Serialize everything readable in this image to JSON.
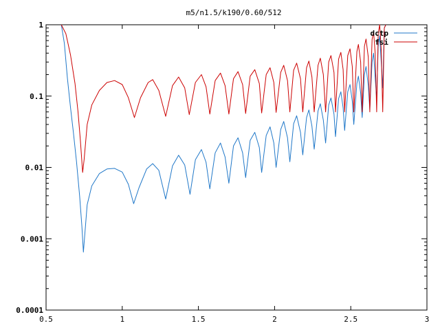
{
  "chart_data": {
    "type": "line",
    "title": "m5/n1.5/k190/0.60/512",
    "xlabel": "",
    "ylabel": "",
    "xlim": [
      0.5,
      3
    ],
    "ylim": [
      0.0001,
      1
    ],
    "yscale": "log",
    "grid": false,
    "legend_position": "top-right",
    "x_ticks": [
      0.5,
      1,
      1.5,
      2,
      2.5,
      3
    ],
    "x_tick_labels": [
      "0.5",
      "1",
      "1.5",
      "2",
      "2.5",
      "3"
    ],
    "y_ticks": [
      0.0001,
      0.001,
      0.01,
      0.1,
      1
    ],
    "y_tick_labels": [
      "0.0001",
      "0.001",
      "0.01",
      "0.1",
      "1"
    ],
    "series": [
      {
        "name": "dctp",
        "color": "#1f77c8",
        "points": [
          [
            0.6,
            1.0
          ],
          [
            0.62,
            0.55
          ],
          [
            0.64,
            0.18
          ],
          [
            0.66,
            0.07
          ],
          [
            0.68,
            0.03
          ],
          [
            0.7,
            0.012
          ],
          [
            0.72,
            0.004
          ],
          [
            0.735,
            0.0015
          ],
          [
            0.745,
            0.00065
          ],
          [
            0.755,
            0.0012
          ],
          [
            0.77,
            0.003
          ],
          [
            0.8,
            0.0055
          ],
          [
            0.85,
            0.0082
          ],
          [
            0.9,
            0.0095
          ],
          [
            0.95,
            0.0097
          ],
          [
            1.0,
            0.0086
          ],
          [
            1.04,
            0.0058
          ],
          [
            1.075,
            0.0031
          ],
          [
            1.11,
            0.0052
          ],
          [
            1.16,
            0.0095
          ],
          [
            1.2,
            0.0113
          ],
          [
            1.24,
            0.0091
          ],
          [
            1.285,
            0.0036
          ],
          [
            1.33,
            0.0105
          ],
          [
            1.37,
            0.0148
          ],
          [
            1.41,
            0.0108
          ],
          [
            1.445,
            0.0042
          ],
          [
            1.48,
            0.0128
          ],
          [
            1.52,
            0.0178
          ],
          [
            1.55,
            0.0118
          ],
          [
            1.575,
            0.005
          ],
          [
            1.61,
            0.016
          ],
          [
            1.645,
            0.022
          ],
          [
            1.675,
            0.014
          ],
          [
            1.7,
            0.006
          ],
          [
            1.73,
            0.02
          ],
          [
            1.76,
            0.026
          ],
          [
            1.79,
            0.016
          ],
          [
            1.81,
            0.0072
          ],
          [
            1.84,
            0.024
          ],
          [
            1.87,
            0.031
          ],
          [
            1.9,
            0.019
          ],
          [
            1.915,
            0.0085
          ],
          [
            1.945,
            0.028
          ],
          [
            1.97,
            0.037
          ],
          [
            1.995,
            0.022
          ],
          [
            2.01,
            0.01
          ],
          [
            2.04,
            0.034
          ],
          [
            2.06,
            0.044
          ],
          [
            2.085,
            0.026
          ],
          [
            2.1,
            0.012
          ],
          [
            2.125,
            0.041
          ],
          [
            2.145,
            0.053
          ],
          [
            2.17,
            0.031
          ],
          [
            2.185,
            0.015
          ],
          [
            2.21,
            0.05
          ],
          [
            2.225,
            0.064
          ],
          [
            2.245,
            0.038
          ],
          [
            2.26,
            0.018
          ],
          [
            2.285,
            0.062
          ],
          [
            2.3,
            0.078
          ],
          [
            2.32,
            0.046
          ],
          [
            2.335,
            0.022
          ],
          [
            2.355,
            0.075
          ],
          [
            2.37,
            0.094
          ],
          [
            2.39,
            0.056
          ],
          [
            2.4,
            0.027
          ],
          [
            2.42,
            0.092
          ],
          [
            2.435,
            0.115
          ],
          [
            2.45,
            0.068
          ],
          [
            2.46,
            0.033
          ],
          [
            2.48,
            0.115
          ],
          [
            2.495,
            0.145
          ],
          [
            2.51,
            0.085
          ],
          [
            2.52,
            0.04
          ],
          [
            2.54,
            0.15
          ],
          [
            2.55,
            0.19
          ],
          [
            2.565,
            0.11
          ],
          [
            2.575,
            0.05
          ],
          [
            2.59,
            0.2
          ],
          [
            2.6,
            0.26
          ],
          [
            2.615,
            0.14
          ],
          [
            2.625,
            0.065
          ],
          [
            2.64,
            0.3
          ],
          [
            2.65,
            0.4
          ],
          [
            2.66,
            0.18
          ],
          [
            2.67,
            0.09
          ],
          [
            2.68,
            0.5
          ],
          [
            2.69,
            0.7
          ],
          [
            2.7,
            0.3
          ],
          [
            2.71,
            0.13
          ],
          [
            2.72,
            0.9
          ],
          [
            2.73,
            1.0
          ]
        ]
      },
      {
        "name": "fsi",
        "color": "#cc0000",
        "points": [
          [
            0.6,
            1.0
          ],
          [
            0.63,
            0.75
          ],
          [
            0.66,
            0.38
          ],
          [
            0.69,
            0.15
          ],
          [
            0.71,
            0.06
          ],
          [
            0.725,
            0.024
          ],
          [
            0.74,
            0.0085
          ],
          [
            0.75,
            0.013
          ],
          [
            0.77,
            0.04
          ],
          [
            0.8,
            0.075
          ],
          [
            0.85,
            0.12
          ],
          [
            0.9,
            0.155
          ],
          [
            0.95,
            0.165
          ],
          [
            1.0,
            0.145
          ],
          [
            1.04,
            0.095
          ],
          [
            1.08,
            0.05
          ],
          [
            1.12,
            0.095
          ],
          [
            1.17,
            0.155
          ],
          [
            1.2,
            0.17
          ],
          [
            1.24,
            0.12
          ],
          [
            1.285,
            0.052
          ],
          [
            1.33,
            0.14
          ],
          [
            1.37,
            0.185
          ],
          [
            1.41,
            0.13
          ],
          [
            1.44,
            0.055
          ],
          [
            1.48,
            0.155
          ],
          [
            1.52,
            0.2
          ],
          [
            1.55,
            0.135
          ],
          [
            1.575,
            0.056
          ],
          [
            1.61,
            0.165
          ],
          [
            1.645,
            0.21
          ],
          [
            1.675,
            0.14
          ],
          [
            1.7,
            0.056
          ],
          [
            1.73,
            0.175
          ],
          [
            1.76,
            0.22
          ],
          [
            1.79,
            0.145
          ],
          [
            1.81,
            0.057
          ],
          [
            1.84,
            0.19
          ],
          [
            1.87,
            0.235
          ],
          [
            1.9,
            0.15
          ],
          [
            1.915,
            0.058
          ],
          [
            1.945,
            0.2
          ],
          [
            1.97,
            0.25
          ],
          [
            1.995,
            0.155
          ],
          [
            2.01,
            0.059
          ],
          [
            2.04,
            0.215
          ],
          [
            2.06,
            0.27
          ],
          [
            2.085,
            0.165
          ],
          [
            2.1,
            0.06
          ],
          [
            2.125,
            0.23
          ],
          [
            2.145,
            0.29
          ],
          [
            2.17,
            0.175
          ],
          [
            2.185,
            0.06
          ],
          [
            2.21,
            0.25
          ],
          [
            2.225,
            0.31
          ],
          [
            2.245,
            0.185
          ],
          [
            2.26,
            0.06
          ],
          [
            2.285,
            0.27
          ],
          [
            2.3,
            0.34
          ],
          [
            2.32,
            0.2
          ],
          [
            2.335,
            0.06
          ],
          [
            2.355,
            0.3
          ],
          [
            2.37,
            0.37
          ],
          [
            2.39,
            0.215
          ],
          [
            2.4,
            0.06
          ],
          [
            2.42,
            0.33
          ],
          [
            2.435,
            0.41
          ],
          [
            2.45,
            0.235
          ],
          [
            2.46,
            0.06
          ],
          [
            2.48,
            0.37
          ],
          [
            2.495,
            0.46
          ],
          [
            2.51,
            0.26
          ],
          [
            2.52,
            0.06
          ],
          [
            2.54,
            0.42
          ],
          [
            2.55,
            0.53
          ],
          [
            2.565,
            0.3
          ],
          [
            2.575,
            0.06
          ],
          [
            2.59,
            0.5
          ],
          [
            2.6,
            0.63
          ],
          [
            2.615,
            0.35
          ],
          [
            2.625,
            0.06
          ],
          [
            2.64,
            0.62
          ],
          [
            2.65,
            0.8
          ],
          [
            2.66,
            0.4
          ],
          [
            2.67,
            0.06
          ],
          [
            2.68,
            0.75
          ],
          [
            2.69,
            1.0
          ],
          [
            2.7,
            0.45
          ],
          [
            2.71,
            0.06
          ],
          [
            2.72,
            0.9
          ],
          [
            2.73,
            1.0
          ]
        ]
      }
    ]
  }
}
